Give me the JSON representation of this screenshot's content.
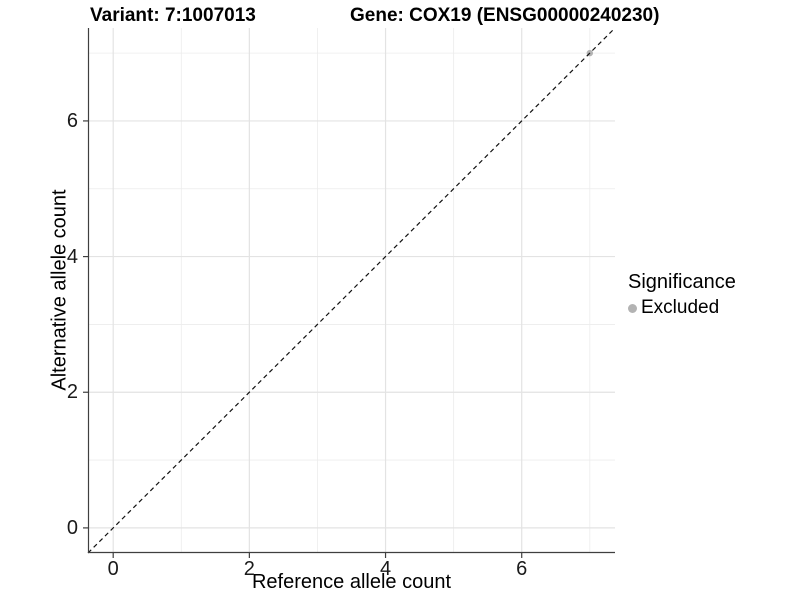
{
  "title": {
    "variant_label": "Variant: 7:1007013",
    "gene_label": "Gene: COX19 (ENSG00000240230)"
  },
  "chart_data": {
    "type": "scatter",
    "title": "Variant: 7:1007013   Gene: COX19 (ENSG00000240230)",
    "xlabel": "Reference allele count",
    "ylabel": "Alternative allele count",
    "xlim": [
      -0.37,
      7.37
    ],
    "ylim": [
      -0.37,
      7.37
    ],
    "x_ticks": [
      0,
      2,
      4,
      6
    ],
    "y_ticks": [
      0,
      2,
      4,
      6
    ],
    "minor_grid_values": [
      1,
      3,
      5,
      7
    ],
    "grid": "major-and-minor",
    "reference_line": {
      "kind": "identity y=x",
      "style": "dashed",
      "color": "#111111",
      "from": [
        -0.37,
        -0.37
      ],
      "to": [
        7.37,
        7.37
      ]
    },
    "series": [
      {
        "name": "Excluded",
        "color": "#b3b3b3",
        "points": [
          {
            "x": 7,
            "y": 7
          }
        ]
      }
    ],
    "legend": {
      "position": "right",
      "title": "Significance",
      "items": [
        {
          "label": "Excluded",
          "color": "#b3b3b3",
          "marker": "circle"
        }
      ]
    }
  },
  "style": {
    "panel_background": "#ffffff",
    "major_grid_color": "#e3e3e3",
    "minor_grid_color": "#ececec",
    "axis_line_color": "#3f3f3f",
    "tick_mark_color": "#3f3f3f",
    "point_color": "#b3b3b3"
  }
}
